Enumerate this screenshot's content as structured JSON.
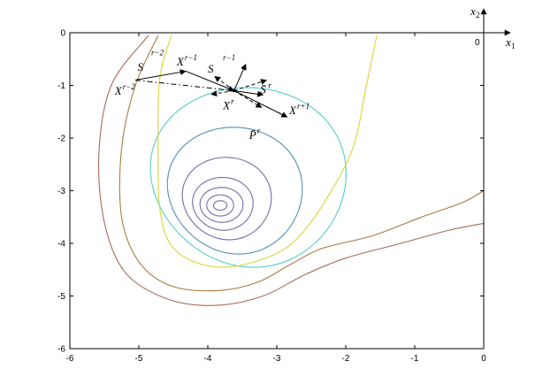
{
  "chart_data": {
    "type": "contour",
    "title": "",
    "xlabel": "",
    "ylabel": "",
    "xlim": [
      -6,
      0
    ],
    "ylim": [
      -6,
      0
    ],
    "xticks": [
      "-6",
      "-5",
      "-4",
      "-3",
      "-2",
      "-1",
      "0"
    ],
    "yticks": [
      "0",
      "-1",
      "-2",
      "-3",
      "-4",
      "-5",
      "-6"
    ],
    "minimum": [
      -3.82,
      -3.28
    ],
    "contours": [
      {
        "color": "#6f6fa8",
        "cx": -3.82,
        "cy": -3.28,
        "rx": 0.1,
        "ry": 0.09
      },
      {
        "color": "#6f6fa8",
        "cx": -3.82,
        "cy": -3.28,
        "rx": 0.2,
        "ry": 0.2
      },
      {
        "color": "#6f6fa8",
        "cx": -3.8,
        "cy": -3.27,
        "rx": 0.32,
        "ry": 0.33
      },
      {
        "color": "#6f6fa8",
        "cx": -3.78,
        "cy": -3.25,
        "rx": 0.45,
        "ry": 0.5
      },
      {
        "color": "#6f6fa8",
        "cx": -3.72,
        "cy": -3.15,
        "rx": 0.66,
        "ry": 0.78
      },
      {
        "color": "#4f8fb8",
        "cx": -3.6,
        "cy": -3.0,
        "rx": 1.0,
        "ry": 1.2
      },
      {
        "color": "#55cccc",
        "cx": -3.4,
        "cy": -2.75,
        "rx": 1.45,
        "ry": 1.7
      }
    ],
    "open_curves": [
      {
        "color": "#d6d63c",
        "points": [
          [
            -4.53,
            -0.05
          ],
          [
            -4.7,
            -0.9
          ],
          [
            -4.72,
            -2.2
          ],
          [
            -4.7,
            -3.3
          ],
          [
            -4.55,
            -4.0
          ],
          [
            -4.2,
            -4.35
          ],
          [
            -3.7,
            -4.45
          ],
          [
            -3.1,
            -4.25
          ],
          [
            -2.7,
            -3.9
          ],
          [
            -2.3,
            -3.2
          ],
          [
            -1.9,
            -2.2
          ],
          [
            -1.7,
            -1.0
          ],
          [
            -1.55,
            -0.05
          ]
        ]
      },
      {
        "color": "#a87a44",
        "points": [
          [
            -4.72,
            -0.05
          ],
          [
            -5.05,
            -1.0
          ],
          [
            -5.25,
            -2.2
          ],
          [
            -5.25,
            -3.5
          ],
          [
            -5.0,
            -4.35
          ],
          [
            -4.55,
            -4.8
          ],
          [
            -3.9,
            -4.9
          ],
          [
            -3.3,
            -4.75
          ],
          [
            -2.8,
            -4.4
          ],
          [
            -2.35,
            -4.1
          ],
          [
            -1.6,
            -3.85
          ],
          [
            -0.9,
            -3.5
          ],
          [
            -0.3,
            -3.22
          ],
          [
            0,
            -3.0
          ]
        ]
      },
      {
        "color": "#a86a5a",
        "points": [
          [
            -4.86,
            -0.05
          ],
          [
            -5.4,
            -1.0
          ],
          [
            -5.58,
            -2.3
          ],
          [
            -5.5,
            -3.6
          ],
          [
            -5.2,
            -4.55
          ],
          [
            -4.6,
            -5.05
          ],
          [
            -3.9,
            -5.18
          ],
          [
            -3.2,
            -5.0
          ],
          [
            -2.6,
            -4.6
          ],
          [
            -2.0,
            -4.28
          ],
          [
            -1.2,
            -4.0
          ],
          [
            -0.5,
            -3.75
          ],
          [
            0,
            -3.62
          ]
        ]
      }
    ],
    "vectors": [
      {
        "label": "S^{r-2}",
        "from": [
          -5.05,
          -0.9
        ],
        "to": [
          -4.32,
          -0.73
        ],
        "style": "solid"
      },
      {
        "label": "S^{r-1}",
        "from": [
          -4.32,
          -0.73
        ],
        "to": [
          -3.62,
          -1.1
        ],
        "style": "solid"
      },
      {
        "label": "",
        "from": [
          -5.05,
          -0.9
        ],
        "to": [
          -3.62,
          -1.1
        ],
        "style": "dashdot"
      },
      {
        "label": "",
        "from": [
          -3.62,
          -1.1
        ],
        "to": [
          -2.85,
          -1.6
        ],
        "style": "dashdot"
      },
      {
        "label": "",
        "from": [
          -3.62,
          -1.1
        ],
        "to": [
          -2.85,
          -1.6
        ],
        "style": "solid"
      },
      {
        "label": "",
        "from": [
          -3.62,
          -1.1
        ],
        "to": [
          -3.45,
          -0.6
        ],
        "style": "solid"
      },
      {
        "label": "",
        "from": [
          -3.62,
          -1.1
        ],
        "to": [
          -3.15,
          -0.9
        ],
        "style": "dashed"
      },
      {
        "label": "S̄^r",
        "from": [
          -3.62,
          -1.1
        ],
        "to": [
          -3.2,
          -1.18
        ],
        "style": "solid"
      },
      {
        "label": "",
        "from": [
          -3.62,
          -1.1
        ],
        "to": [
          -3.22,
          -1.42
        ],
        "style": "dashed"
      },
      {
        "label": "",
        "from": [
          -3.62,
          -1.1
        ],
        "to": [
          -3.9,
          -0.83
        ],
        "style": "dashed"
      },
      {
        "label": "",
        "from": [
          -3.62,
          -1.1
        ],
        "to": [
          -3.95,
          -1.17
        ],
        "style": "dashed"
      }
    ],
    "annotations": [
      {
        "name": "X-r-minus-2",
        "base": "X",
        "sup": "r−2",
        "at": [
          -5.35,
          -1.18
        ]
      },
      {
        "name": "X-r-minus-1",
        "base": "X",
        "sup": "r−1",
        "at": [
          -4.45,
          -0.62
        ]
      },
      {
        "name": "S-r-minus-2",
        "base": "S",
        "sup": "r−2",
        "at": [
          -5.02,
          -0.72
        ],
        "sup_at": [
          -4.82,
          -0.43
        ]
      },
      {
        "name": "S-r-minus-1",
        "base": "S",
        "sup": "r−1",
        "at": [
          -4.0,
          -0.76
        ],
        "sup_at": [
          -3.78,
          -0.52
        ]
      },
      {
        "name": "X-r",
        "base": "X",
        "sup": "r",
        "at": [
          -3.78,
          -1.45
        ]
      },
      {
        "name": "S-bar-r",
        "base": "S̄",
        "sup": "r",
        "at": [
          -3.24,
          -1.15
        ]
      },
      {
        "name": "P-bar-r",
        "base": "P̄",
        "sup": "r",
        "at": [
          -3.4,
          -2.02
        ]
      },
      {
        "name": "X-r-plus-1",
        "base": "X",
        "sup": "r+1",
        "at": [
          -2.82,
          -1.55
        ]
      }
    ],
    "inset_axes": {
      "x_label": "x",
      "x_sub": "1",
      "y_label": "x",
      "y_sub": "2",
      "origin_label": "0"
    }
  }
}
